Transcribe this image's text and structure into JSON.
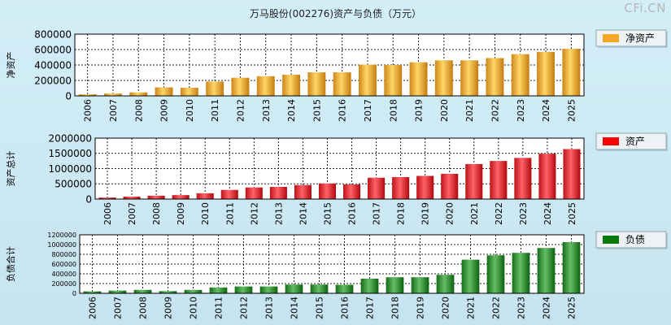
{
  "title": "万马股份(002276)资产与负债（万元）",
  "watermark": "CFi.CN",
  "chart_data": [
    {
      "type": "bar",
      "title": "万马股份(002276)资产与负债（万元）",
      "ylabel": "净资产",
      "legend": "净资产",
      "color": "#f2a93b",
      "legend_color": "#f5a623",
      "categories": [
        "2006",
        "2007",
        "2008",
        "2009",
        "2010",
        "2011",
        "2012",
        "2013",
        "2014",
        "2015",
        "2016",
        "2017",
        "2018",
        "2019",
        "2020",
        "2021",
        "2022",
        "2023",
        "2024",
        "2025"
      ],
      "values": [
        20000,
        30000,
        45000,
        110000,
        105000,
        185000,
        235000,
        255000,
        275000,
        305000,
        305000,
        405000,
        400000,
        435000,
        460000,
        460000,
        490000,
        540000,
        570000,
        610000
      ],
      "ylim": [
        0,
        800000
      ],
      "yticks": [
        0,
        200000,
        400000,
        600000,
        800000
      ],
      "grid": true
    },
    {
      "type": "bar",
      "ylabel": "资产总计",
      "legend": "资产",
      "color": "#e0353b",
      "legend_color": "#ff0000",
      "categories": [
        "2006",
        "2007",
        "2008",
        "2009",
        "2010",
        "2011",
        "2012",
        "2013",
        "2014",
        "2015",
        "2016",
        "2017",
        "2018",
        "2019",
        "2020",
        "2021",
        "2022",
        "2023",
        "2024",
        "2025"
      ],
      "values": [
        50000,
        80000,
        110000,
        130000,
        190000,
        300000,
        380000,
        400000,
        460000,
        510000,
        480000,
        700000,
        720000,
        760000,
        830000,
        1150000,
        1250000,
        1350000,
        1490000,
        1640000
      ],
      "ylim": [
        0,
        2000000
      ],
      "yticks": [
        0,
        500000,
        1000000,
        1500000,
        2000000
      ],
      "grid": true
    },
    {
      "type": "bar",
      "ylabel": "负债合计",
      "legend": "负债",
      "color": "#3a8f3a",
      "legend_color": "#0a7a0a",
      "categories": [
        "2006",
        "2007",
        "2008",
        "2009",
        "2010",
        "2011",
        "2012",
        "2013",
        "2014",
        "2015",
        "2016",
        "2017",
        "2018",
        "2019",
        "2020",
        "2021",
        "2022",
        "2023",
        "2024",
        "2025"
      ],
      "values": [
        40000,
        55000,
        70000,
        45000,
        70000,
        120000,
        140000,
        140000,
        180000,
        180000,
        175000,
        300000,
        330000,
        330000,
        380000,
        690000,
        780000,
        830000,
        930000,
        1050000
      ],
      "ylim": [
        0,
        1200000
      ],
      "yticks": [
        0,
        200000,
        400000,
        600000,
        800000,
        1000000,
        1200000
      ],
      "grid": true
    }
  ]
}
